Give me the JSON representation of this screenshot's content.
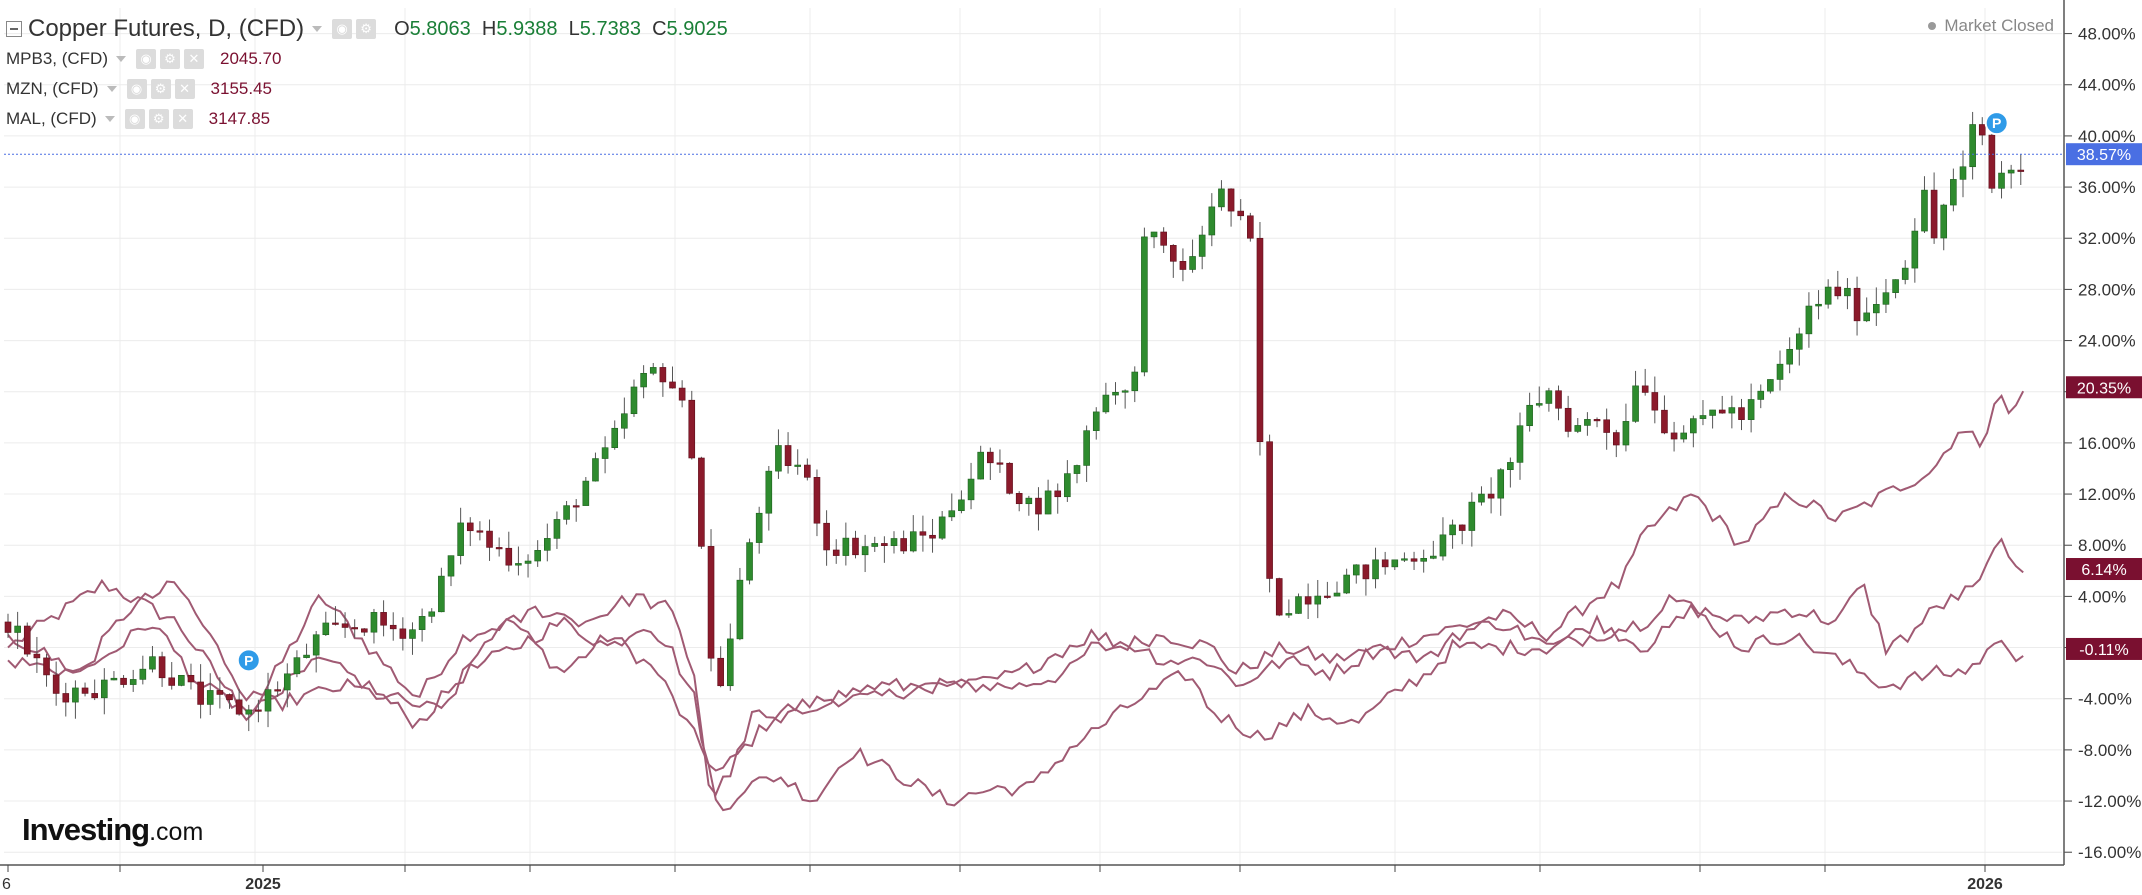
{
  "legend": {
    "main": {
      "symbol": "Copper Futures, D, (CFD)",
      "open_label": "O",
      "open": "5.8063",
      "high_label": "H",
      "high": "5.9388",
      "low_label": "L",
      "low": "5.7383",
      "close_label": "C",
      "close": "5.9025"
    },
    "subs": [
      {
        "symbol": "MPB3, (CFD)",
        "value": "2045.70"
      },
      {
        "symbol": "MZN, (CFD)",
        "value": "3155.45"
      },
      {
        "symbol": "MAL, (CFD)",
        "value": "3147.85"
      }
    ]
  },
  "status": {
    "market": "Market Closed"
  },
  "logo": {
    "name": "Investing",
    "suffix": ".com"
  },
  "colors": {
    "up": "#2e8b2e",
    "down": "#8b1a2b",
    "compare": "#a05a73",
    "crosshair": "#4a6fe3",
    "badge_main": "#4a6fe3",
    "badge_compare": "#7a1030"
  },
  "chart_data": {
    "type": "candlestick",
    "x_labels": [
      "6",
      "2025",
      "2026"
    ],
    "y_axis": {
      "unit": "%",
      "min": -17,
      "max": 50,
      "ticks": [
        -16,
        -12,
        -8,
        -4,
        0,
        4,
        8,
        12,
        16,
        20,
        24,
        28,
        32,
        36,
        40,
        44,
        48
      ],
      "tick_labels": [
        "-16.00%",
        "-12.00%",
        "-8.00%",
        "-4.00%",
        "",
        "4.00%",
        "8.00%",
        "12.00%",
        "16.00%",
        "20.00%",
        "24.00%",
        "28.00%",
        "32.00%",
        "36.00%",
        "40.00%",
        "44.00%",
        "48.00%"
      ]
    },
    "grid": true,
    "main_series": {
      "name": "Copper Futures",
      "close_anchors": [
        [
          0,
          2
        ],
        [
          20,
          -3.5
        ],
        [
          40,
          -3
        ],
        [
          60,
          -1
        ],
        [
          80,
          -4
        ],
        [
          100,
          -5
        ],
        [
          115,
          -2.5
        ],
        [
          130,
          1
        ],
        [
          150,
          2
        ],
        [
          160,
          1.5
        ],
        [
          170,
          1.5
        ],
        [
          180,
          5
        ],
        [
          190,
          10
        ],
        [
          200,
          8
        ],
        [
          210,
          7
        ],
        [
          220,
          7.5
        ],
        [
          230,
          10
        ],
        [
          240,
          13
        ],
        [
          250,
          15.5
        ],
        [
          260,
          20
        ],
        [
          270,
          22
        ],
        [
          278,
          20
        ],
        [
          285,
          15
        ],
        [
          292,
          -1
        ],
        [
          297,
          -3
        ],
        [
          302,
          3
        ],
        [
          310,
          10
        ],
        [
          320,
          15
        ],
        [
          330,
          14
        ],
        [
          340,
          8
        ],
        [
          355,
          8
        ],
        [
          370,
          8
        ],
        [
          385,
          9
        ],
        [
          395,
          12
        ],
        [
          405,
          15
        ],
        [
          415,
          13
        ],
        [
          425,
          11
        ],
        [
          435,
          12
        ],
        [
          443,
          14
        ],
        [
          452,
          19
        ],
        [
          462,
          21
        ],
        [
          467,
          18
        ],
        [
          472,
          33
        ],
        [
          482,
          30
        ],
        [
          492,
          30
        ],
        [
          502,
          36
        ],
        [
          512,
          33
        ],
        [
          517,
          31
        ],
        [
          522,
          6
        ],
        [
          527,
          3
        ],
        [
          537,
          4
        ],
        [
          550,
          5
        ],
        [
          565,
          6
        ],
        [
          580,
          7
        ],
        [
          595,
          8
        ],
        [
          605,
          10
        ],
        [
          615,
          12
        ],
        [
          625,
          15
        ],
        [
          633,
          19
        ],
        [
          640,
          20
        ],
        [
          650,
          17
        ],
        [
          660,
          18
        ],
        [
          670,
          16
        ],
        [
          677,
          22
        ],
        [
          683,
          19
        ],
        [
          690,
          17
        ],
        [
          700,
          17
        ],
        [
          710,
          19
        ],
        [
          720,
          18
        ],
        [
          730,
          20
        ],
        [
          740,
          23
        ],
        [
          750,
          27
        ],
        [
          760,
          28
        ],
        [
          770,
          26
        ],
        [
          780,
          28
        ],
        [
          790,
          31
        ],
        [
          795,
          36
        ],
        [
          800,
          32
        ],
        [
          806,
          36
        ],
        [
          812,
          37
        ],
        [
          818,
          42
        ],
        [
          824,
          36
        ],
        [
          830,
          37.5
        ]
      ],
      "last_value": 38.57,
      "last_label": "38.57%",
      "marker": "P",
      "marker_points": [
        [
          100,
          -1
        ],
        [
          826,
          41
        ]
      ]
    },
    "compare_series": [
      {
        "final_value": 20.35,
        "final_label": "20.35%",
        "anchors": [
          [
            0,
            0
          ],
          [
            40,
            5
          ],
          [
            70,
            2
          ],
          [
            100,
            -5.5
          ],
          [
            130,
            4
          ],
          [
            150,
            0
          ],
          [
            170,
            -4
          ],
          [
            190,
            1
          ],
          [
            210,
            2
          ],
          [
            230,
            -2
          ],
          [
            250,
            1
          ],
          [
            270,
            -2
          ],
          [
            282,
            -6
          ],
          [
            295,
            -10
          ],
          [
            305,
            -8
          ],
          [
            320,
            -5
          ],
          [
            340,
            -4
          ],
          [
            360,
            -4
          ],
          [
            380,
            -3
          ],
          [
            400,
            -3
          ],
          [
            420,
            -3
          ],
          [
            440,
            -2
          ],
          [
            450,
            0
          ],
          [
            460,
            0
          ],
          [
            480,
            1
          ],
          [
            500,
            0
          ],
          [
            510,
            -2
          ],
          [
            530,
            0
          ],
          [
            550,
            -1
          ],
          [
            570,
            0
          ],
          [
            590,
            1
          ],
          [
            610,
            2
          ],
          [
            620,
            2.5
          ],
          [
            640,
            1
          ],
          [
            660,
            4
          ],
          [
            670,
            5
          ],
          [
            680,
            9
          ],
          [
            700,
            12
          ],
          [
            710,
            10
          ],
          [
            720,
            8
          ],
          [
            740,
            12
          ],
          [
            760,
            10
          ],
          [
            780,
            12
          ],
          [
            800,
            14
          ],
          [
            810,
            17
          ],
          [
            820,
            16
          ],
          [
            826,
            20
          ],
          [
            832,
            18
          ],
          [
            838,
            20.35
          ]
        ]
      },
      {
        "final_value": 6.14,
        "final_label": "6.14%",
        "anchors": [
          [
            0,
            -1
          ],
          [
            30,
            -2
          ],
          [
            50,
            3
          ],
          [
            70,
            5
          ],
          [
            90,
            -1
          ],
          [
            100,
            -4
          ],
          [
            115,
            -3
          ],
          [
            130,
            -1
          ],
          [
            150,
            -3
          ],
          [
            170,
            -6
          ],
          [
            190,
            -2
          ],
          [
            210,
            0
          ],
          [
            230,
            2
          ],
          [
            250,
            0
          ],
          [
            265,
            2
          ],
          [
            275,
            0
          ],
          [
            285,
            -4
          ],
          [
            295,
            -13
          ],
          [
            305,
            -11
          ],
          [
            320,
            -10
          ],
          [
            335,
            -12
          ],
          [
            350,
            -8
          ],
          [
            370,
            -10
          ],
          [
            390,
            -12
          ],
          [
            410,
            -11
          ],
          [
            425,
            -11
          ],
          [
            440,
            -8
          ],
          [
            455,
            -6
          ],
          [
            470,
            -4
          ],
          [
            480,
            -3
          ],
          [
            490,
            -2
          ],
          [
            500,
            -5
          ],
          [
            520,
            -7
          ],
          [
            540,
            -5
          ],
          [
            560,
            -6
          ],
          [
            580,
            -3
          ],
          [
            590,
            -2
          ],
          [
            600,
            0
          ],
          [
            620,
            0
          ],
          [
            640,
            0
          ],
          [
            660,
            2
          ],
          [
            680,
            0
          ],
          [
            700,
            3
          ],
          [
            720,
            2
          ],
          [
            740,
            3
          ],
          [
            760,
            2
          ],
          [
            770,
            5
          ],
          [
            780,
            0
          ],
          [
            790,
            1
          ],
          [
            800,
            3
          ],
          [
            810,
            4
          ],
          [
            820,
            5
          ],
          [
            826,
            9
          ],
          [
            832,
            6
          ],
          [
            838,
            6.14
          ]
        ]
      },
      {
        "final_value": -0.11,
        "final_label": "-0.11%",
        "anchors": [
          [
            0,
            1
          ],
          [
            30,
            -2
          ],
          [
            60,
            2
          ],
          [
            80,
            -3
          ],
          [
            100,
            -5
          ],
          [
            120,
            -4
          ],
          [
            140,
            -3
          ],
          [
            160,
            -4
          ],
          [
            180,
            -5
          ],
          [
            200,
            1
          ],
          [
            220,
            3
          ],
          [
            240,
            2
          ],
          [
            260,
            4
          ],
          [
            275,
            3
          ],
          [
            285,
            -2
          ],
          [
            292,
            -12
          ],
          [
            302,
            -9
          ],
          [
            310,
            -5
          ],
          [
            320,
            -6
          ],
          [
            340,
            -4
          ],
          [
            360,
            -3
          ],
          [
            380,
            -3
          ],
          [
            400,
            -3
          ],
          [
            420,
            -2
          ],
          [
            440,
            0
          ],
          [
            450,
            1
          ],
          [
            470,
            0
          ],
          [
            480,
            -1
          ],
          [
            500,
            -1
          ],
          [
            510,
            -3
          ],
          [
            530,
            -1
          ],
          [
            550,
            -2
          ],
          [
            570,
            0
          ],
          [
            590,
            -1
          ],
          [
            600,
            1
          ],
          [
            620,
            2
          ],
          [
            640,
            0
          ],
          [
            660,
            1
          ],
          [
            680,
            2
          ],
          [
            690,
            4
          ],
          [
            700,
            3
          ],
          [
            720,
            0
          ],
          [
            740,
            1
          ],
          [
            760,
            -1
          ],
          [
            780,
            -3
          ],
          [
            800,
            -2
          ],
          [
            810,
            -2
          ],
          [
            820,
            -1
          ],
          [
            826,
            1
          ],
          [
            832,
            -1
          ],
          [
            838,
            -0.11
          ]
        ]
      }
    ]
  }
}
